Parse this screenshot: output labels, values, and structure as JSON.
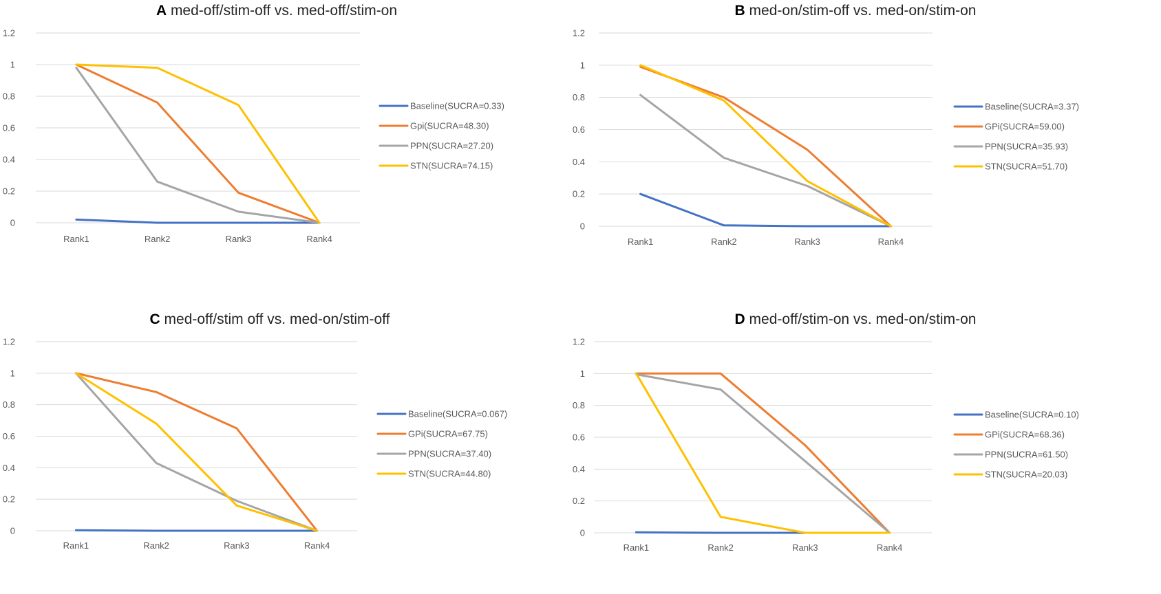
{
  "chart_data": [
    {
      "type": "line",
      "panel_letter": "A",
      "title": "med-off/stim-off vs. med-off/stim-on",
      "categories": [
        "Rank1",
        "Rank2",
        "Rank3",
        "Rank4"
      ],
      "ylim": [
        0,
        1.2
      ],
      "yticks": [
        "0",
        "0.2",
        "0.4",
        "0.6",
        "0.8",
        "1",
        "1.2"
      ],
      "legend_position": "right",
      "grid": true,
      "series": [
        {
          "name": "Baseline(SUCRA=0.33)",
          "color": "#4472c4",
          "values": [
            0.02,
            0.0,
            0.0,
            0.0
          ]
        },
        {
          "name": "Gpi(SUCRA=48.30)",
          "color": "#ed7d31",
          "values": [
            1.0,
            0.76,
            0.19,
            0.0
          ]
        },
        {
          "name": "PPN(SUCRA=27.20)",
          "color": "#a5a5a5",
          "values": [
            0.98,
            0.26,
            0.07,
            0.0
          ]
        },
        {
          "name": "STN(SUCRA=74.15)",
          "color": "#ffc000",
          "values": [
            1.0,
            0.98,
            0.745,
            0.0
          ]
        }
      ]
    },
    {
      "type": "line",
      "panel_letter": "B",
      "title": "med-on/stim-off vs. med-on/stim-on",
      "categories": [
        "Rank1",
        "Rank2",
        "Rank3",
        "Rank4"
      ],
      "ylim": [
        0,
        1.2
      ],
      "yticks": [
        "0",
        "0.2",
        "0.4",
        "0.6",
        "0.8",
        "1",
        "1.2"
      ],
      "legend_position": "right",
      "grid": true,
      "series": [
        {
          "name": "Baseline(SUCRA=3.37)",
          "color": "#4472c4",
          "values": [
            0.2,
            0.005,
            0.0,
            0.0
          ]
        },
        {
          "name": "GPi(SUCRA=59.00)",
          "color": "#ed7d31",
          "values": [
            0.99,
            0.8,
            0.475,
            0.0
          ]
        },
        {
          "name": "PPN(SUCRA=35.93)",
          "color": "#a5a5a5",
          "values": [
            0.815,
            0.425,
            0.25,
            0.0
          ]
        },
        {
          "name": "STN(SUCRA=51.70)",
          "color": "#ffc000",
          "values": [
            1.0,
            0.78,
            0.28,
            0.0
          ]
        }
      ]
    },
    {
      "type": "line",
      "panel_letter": "C",
      "title": "med-off/stim off vs. med-on/stim-off",
      "categories": [
        "Rank1",
        "Rank2",
        "Rank3",
        "Rank4"
      ],
      "ylim": [
        0,
        1.2
      ],
      "yticks": [
        "0",
        "0.2",
        "0.4",
        "0.6",
        "0.8",
        "1",
        "1.2"
      ],
      "legend_position": "right",
      "grid": true,
      "series": [
        {
          "name": "Baseline(SUCRA=0.067)",
          "color": "#4472c4",
          "values": [
            0.003,
            0.0,
            0.0,
            0.0
          ]
        },
        {
          "name": "GPi(SUCRA=67.75)",
          "color": "#ed7d31",
          "values": [
            1.0,
            0.88,
            0.65,
            0.0
          ]
        },
        {
          "name": "PPN(SUCRA=37.40)",
          "color": "#a5a5a5",
          "values": [
            1.0,
            0.43,
            0.19,
            0.0
          ]
        },
        {
          "name": "STN(SUCRA=44.80)",
          "color": "#ffc000",
          "values": [
            1.0,
            0.68,
            0.16,
            0.0
          ]
        }
      ]
    },
    {
      "type": "line",
      "panel_letter": "D",
      "title": "med-off/stim-on vs. med-on/stim-on",
      "categories": [
        "Rank1",
        "Rank2",
        "Rank3",
        "Rank4"
      ],
      "ylim": [
        0,
        1.2
      ],
      "yticks": [
        "0",
        "0.2",
        "0.4",
        "0.6",
        "0.8",
        "1",
        "1.2"
      ],
      "legend_position": "right",
      "grid": true,
      "series": [
        {
          "name": "Baseline(SUCRA=0.10)",
          "color": "#4472c4",
          "values": [
            0.003,
            0.0,
            0.0,
            0.0
          ]
        },
        {
          "name": "GPi(SUCRA=68.36)",
          "color": "#ed7d31",
          "values": [
            1.0,
            1.0,
            0.55,
            0.0
          ]
        },
        {
          "name": "PPN(SUCRA=61.50)",
          "color": "#a5a5a5",
          "values": [
            0.995,
            0.9,
            0.45,
            0.0
          ]
        },
        {
          "name": "STN(SUCRA=20.03)",
          "color": "#ffc000",
          "values": [
            1.0,
            0.1,
            0.0,
            0.0
          ]
        }
      ]
    }
  ]
}
